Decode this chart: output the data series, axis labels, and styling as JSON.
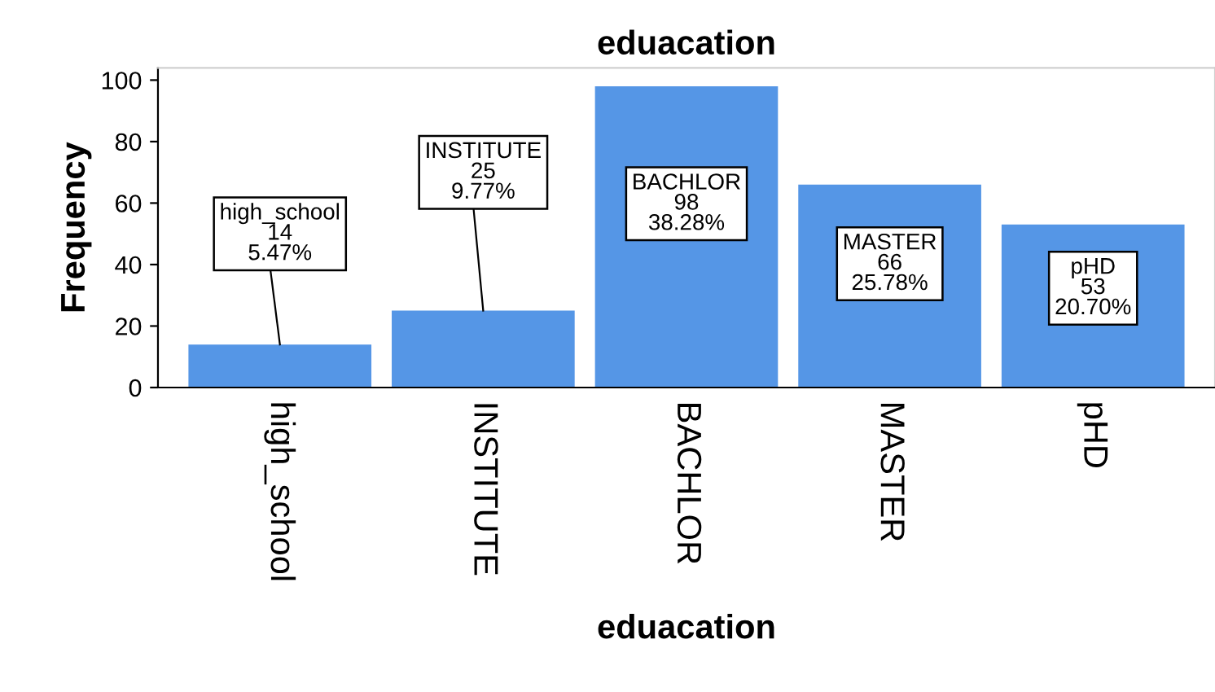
{
  "chart_data": {
    "type": "bar",
    "title": "eduacation",
    "xlabel": "eduacation",
    "ylabel": "Frequency",
    "categories": [
      "high_school",
      "INSTITUTE",
      "BACHLOR",
      "MASTER",
      "pHD"
    ],
    "values": [
      14,
      25,
      98,
      66,
      53
    ],
    "value_labels": [
      "high_school\n14\n5.47%",
      "INSTITUTE\n25\n9.77%",
      "BACHLOR\n98\n38.28%",
      "MASTER\n66\n25.78%",
      "pHD\n53\n20.70%"
    ],
    "color": "#5596e6",
    "ylim": [
      0,
      104
    ],
    "yticks": [
      0,
      20,
      40,
      60,
      80,
      100
    ],
    "grid": false,
    "legend": false
  }
}
